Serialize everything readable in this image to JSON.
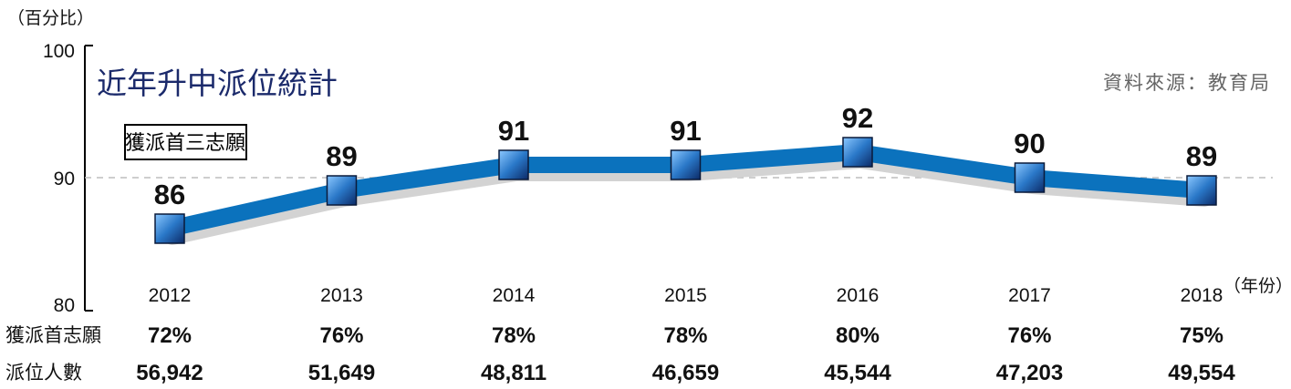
{
  "chart_data": {
    "type": "line",
    "title": "近年升中派位統計",
    "source": "資料來源：教育局",
    "ylabel": "（百分比）",
    "xunit": "（年份）",
    "ylim": [
      80,
      100
    ],
    "yticks": [
      "100",
      "90",
      "80"
    ],
    "reference_line": 90,
    "x": [
      "2012",
      "2013",
      "2014",
      "2015",
      "2016",
      "2017",
      "2018"
    ],
    "series": [
      {
        "name": "獲派首三志願",
        "values": [
          86,
          89,
          91,
          91,
          92,
          90,
          89
        ]
      }
    ],
    "series_color": "#0b72bd",
    "marker_color": "#1a5fa8",
    "table_rows": [
      {
        "label": "獲派首志願",
        "values": [
          "72%",
          "76%",
          "78%",
          "78%",
          "80%",
          "76%",
          "75%"
        ]
      },
      {
        "label": "派位人數",
        "values": [
          "56,942",
          "51,649",
          "48,811",
          "46,659",
          "45,544",
          "47,203",
          "49,554"
        ]
      }
    ]
  }
}
